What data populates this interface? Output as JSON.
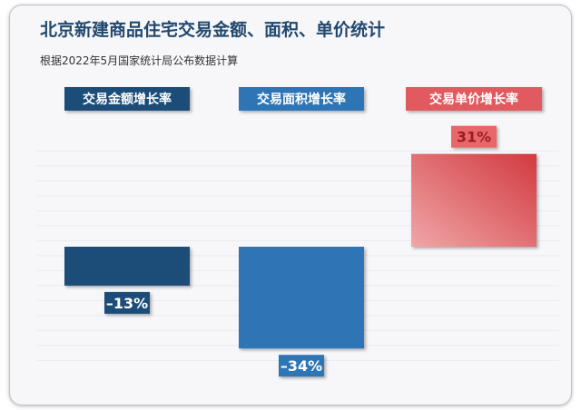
{
  "title": "北京新建商品住宅交易金额、面积、单价统计",
  "subtitle": "根据2022年5月国家统计局公布数据计算",
  "chart_data": {
    "type": "bar",
    "categories": [
      "交易金额增长率",
      "交易面积增长率",
      "交易单价增长率"
    ],
    "values": [
      -13,
      -34,
      31
    ],
    "value_labels": [
      "–13%",
      "–34%",
      "31%"
    ],
    "colors": [
      "#1f4e79",
      "#2e75b6",
      "#e05a5e"
    ],
    "label_colors": [
      "#ffffff",
      "#ffffff",
      "#9b1c23"
    ],
    "ylim": [
      -38,
      32
    ],
    "grid": true,
    "legend": "none"
  }
}
